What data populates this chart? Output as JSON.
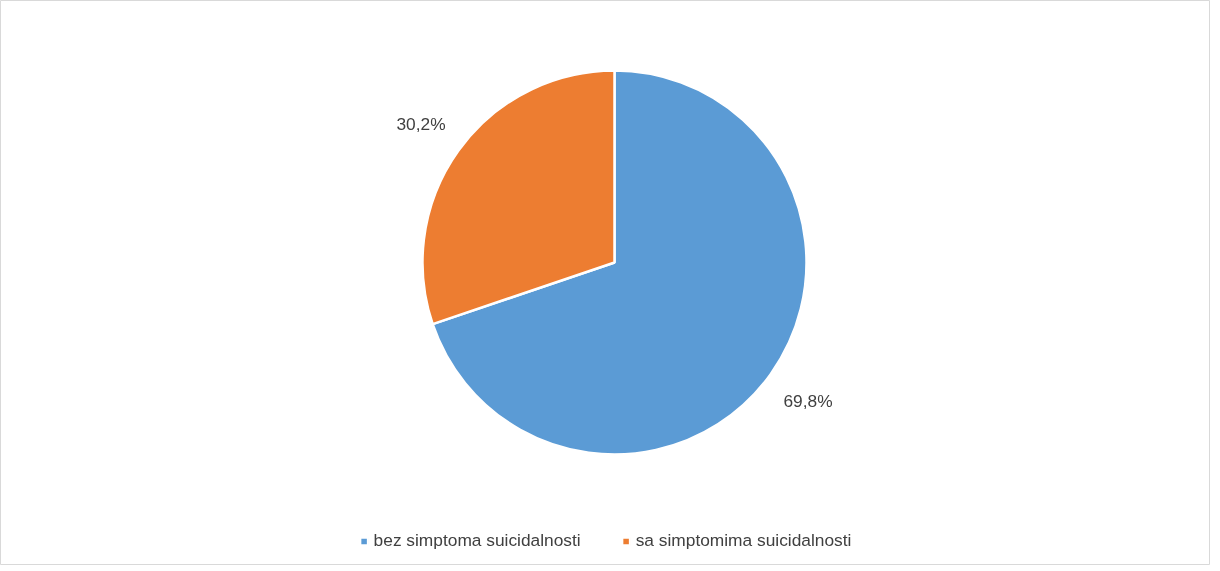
{
  "chart_data": {
    "type": "pie",
    "categories": [
      "bez simptoma suicidalnosti",
      "sa simptomima suicidalnosti"
    ],
    "values": [
      69.8,
      30.2
    ],
    "colors": [
      "#5b9bd5",
      "#ed7d31"
    ],
    "value_labels": [
      "69,8%",
      "30,2%"
    ],
    "legend": "bottom"
  }
}
